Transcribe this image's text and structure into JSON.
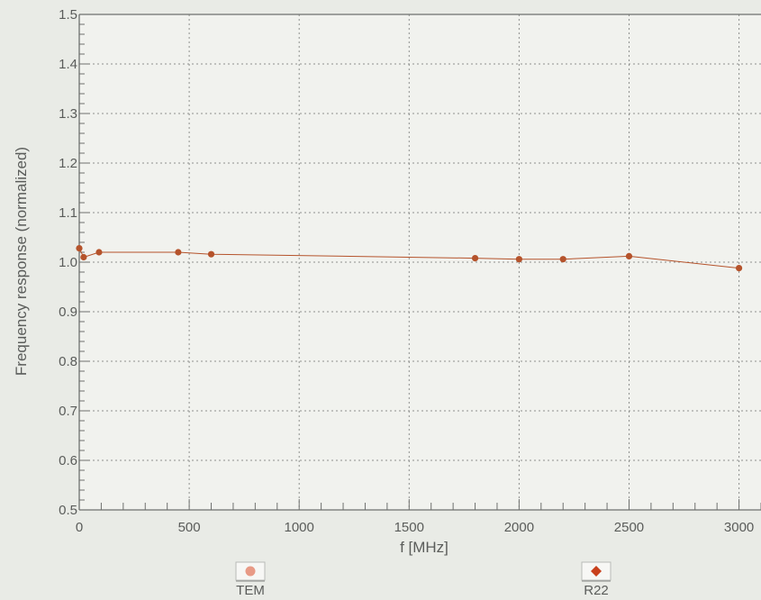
{
  "chart_data": {
    "type": "line",
    "xlabel": "f [MHz]",
    "ylabel": "Frequency response (normalized)",
    "xlim": [
      0,
      3100
    ],
    "ylim": [
      0.5,
      1.5
    ],
    "x_ticks": [
      0,
      500,
      1000,
      1500,
      2000,
      2500,
      3000
    ],
    "x_tick_labels": [
      "0",
      "500",
      "1000",
      "1500",
      "2000",
      "2500",
      "3000"
    ],
    "y_ticks": [
      0.5,
      0.6,
      0.7,
      0.8,
      0.9,
      1.0,
      1.1,
      1.2,
      1.3,
      1.4,
      1.5
    ],
    "y_tick_labels": [
      "0.5",
      "0.6",
      "0.7",
      "0.8",
      "0.9",
      "1.0",
      "1.1",
      "1.2",
      "1.3",
      "1.4",
      "1.5"
    ],
    "grid": true,
    "legend_placement": "bottom",
    "series": [
      {
        "name": "TEM",
        "marker": "circle",
        "color": "#b5532b",
        "x": [
          0,
          20,
          90,
          450,
          600,
          1800,
          2000,
          2200,
          2500,
          3000
        ],
        "y": [
          1.028,
          1.01,
          1.02,
          1.02,
          1.016,
          1.008,
          1.006,
          1.006,
          1.012,
          0.988
        ]
      },
      {
        "name": "R22",
        "marker": "diamond",
        "color": "#b5532b",
        "x": [
          0,
          20,
          90,
          450,
          600,
          1800,
          2000,
          2200,
          2500,
          3000
        ],
        "y": [
          1.028,
          1.01,
          1.02,
          1.02,
          1.016,
          1.008,
          1.006,
          1.006,
          1.012,
          0.988
        ]
      }
    ]
  },
  "colors": {
    "background": "#e9ebe6",
    "plot_background": "#f1f2ee",
    "axis": "#6e706e",
    "grid": "#8e908e",
    "line": "#b5532b",
    "legend_circle": "#e89a86",
    "legend_diamond": "#c8401c"
  }
}
